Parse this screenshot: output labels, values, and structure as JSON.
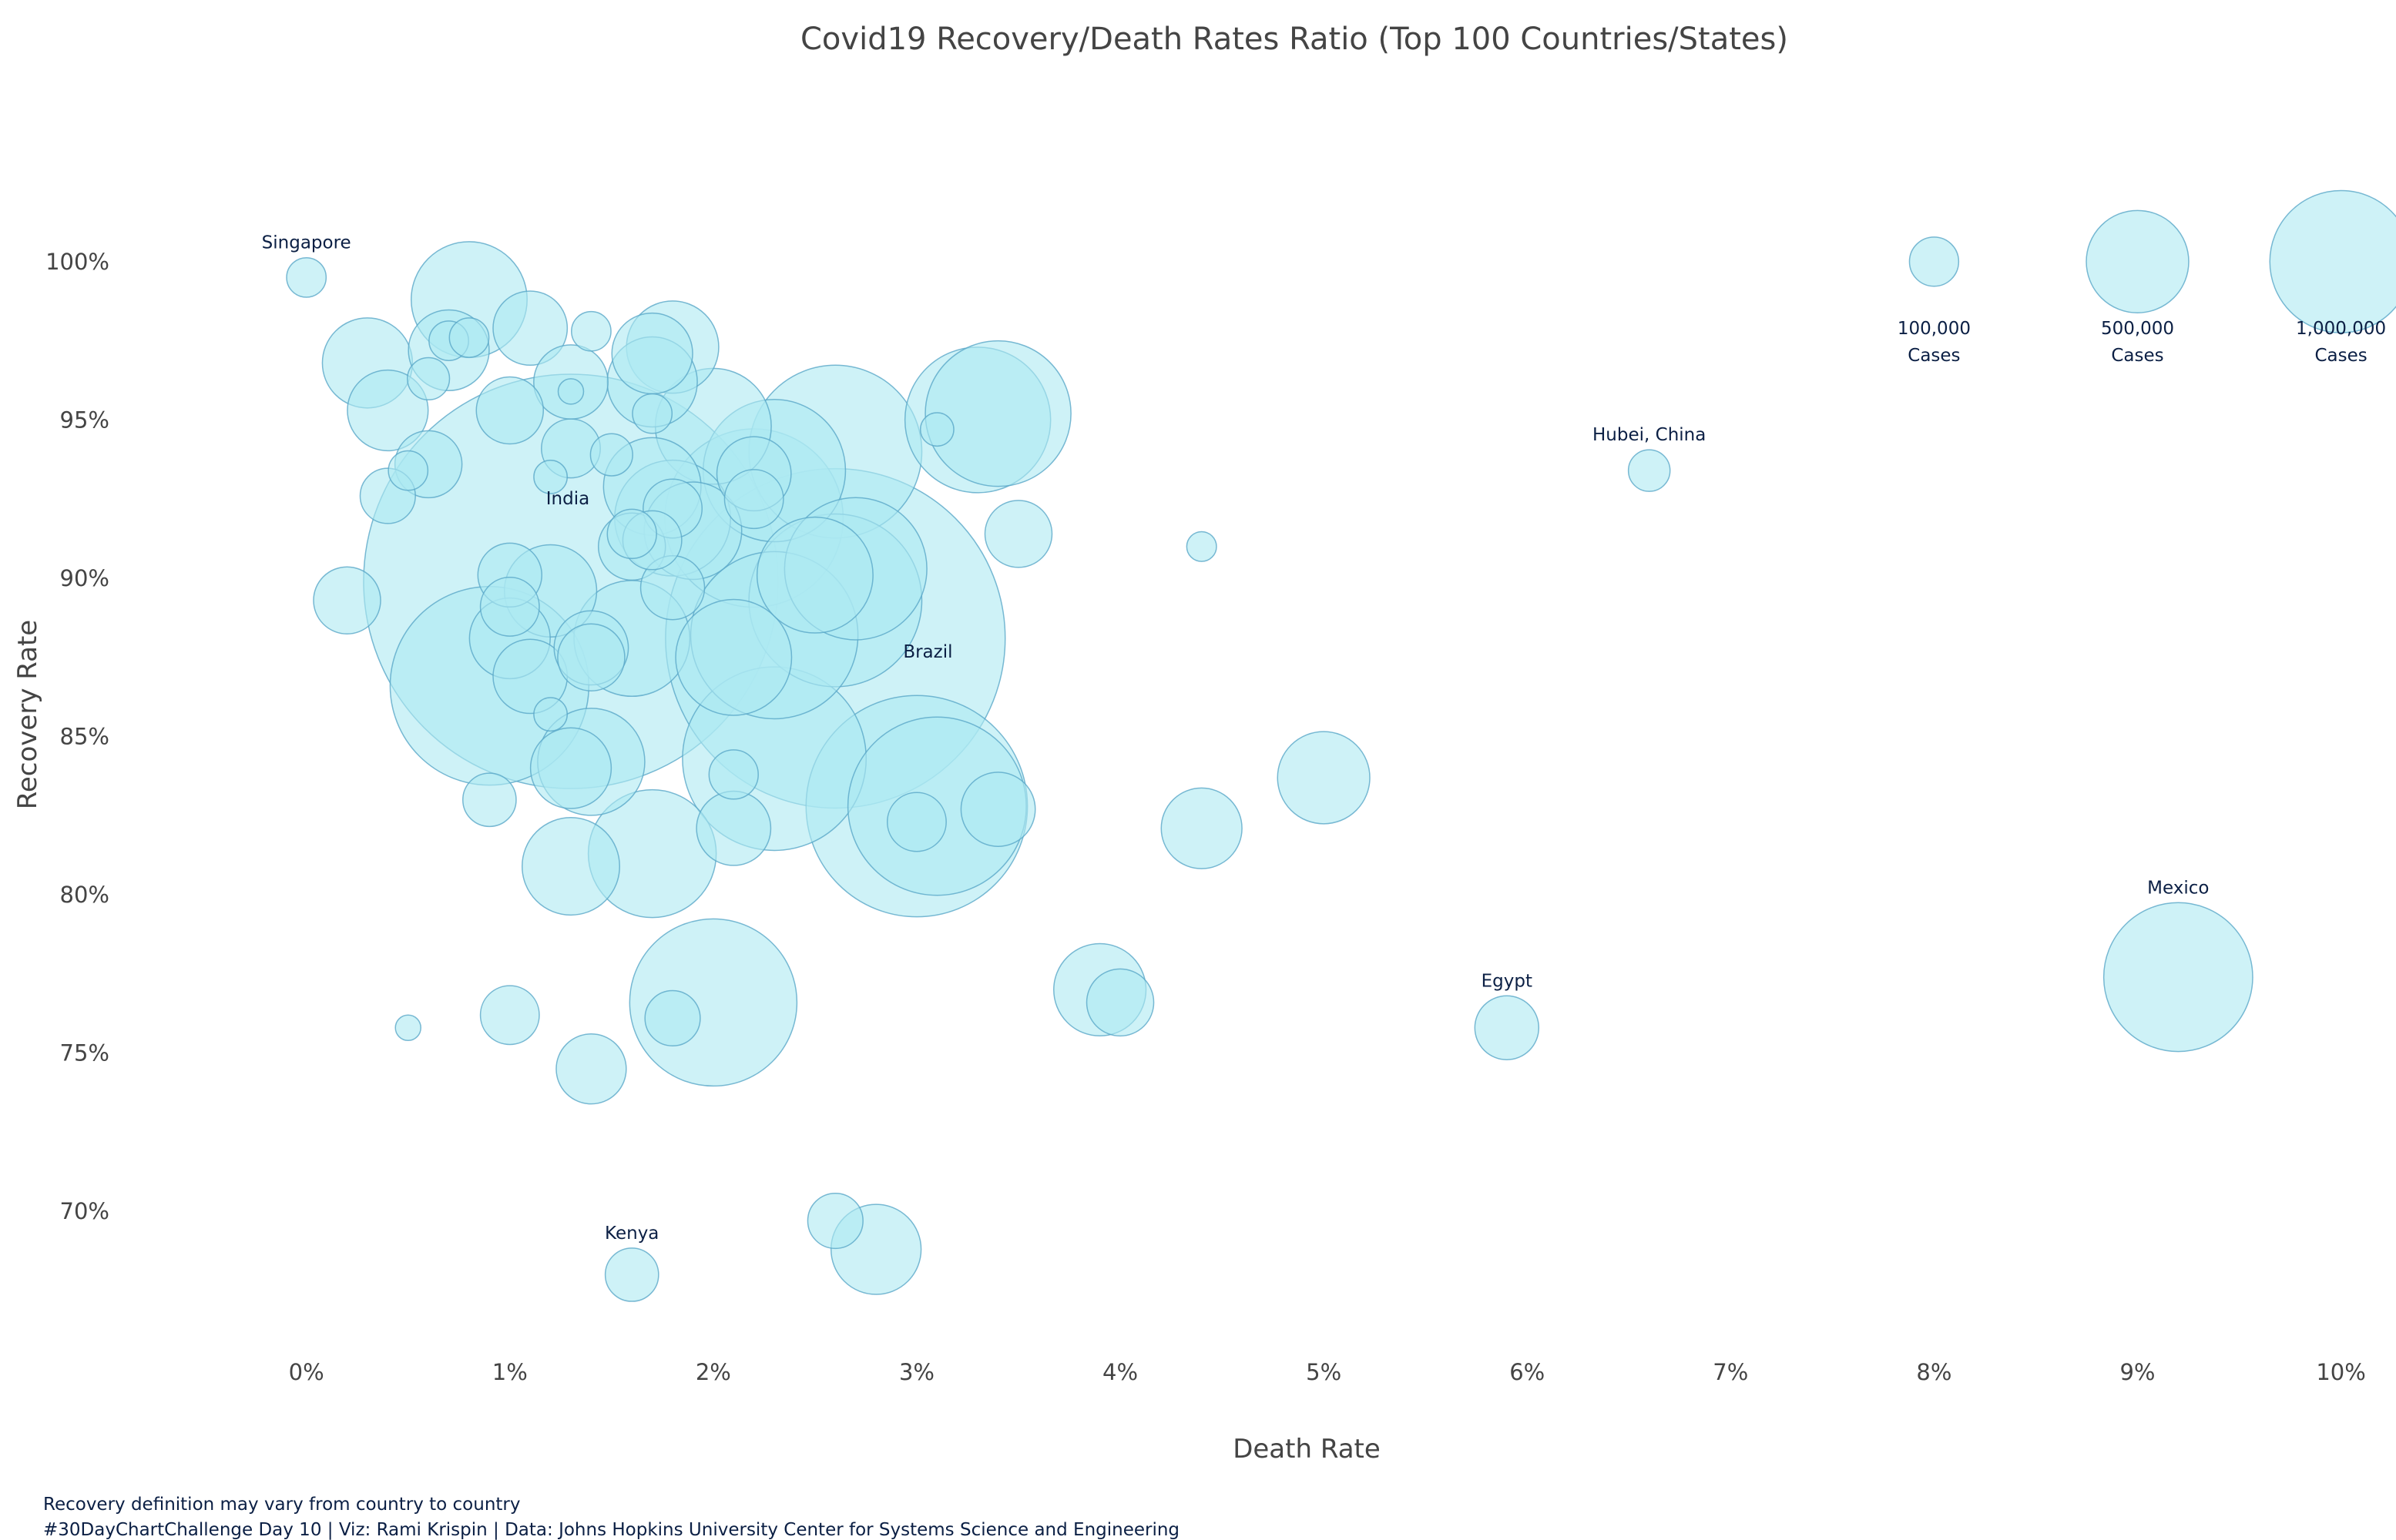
{
  "chart_data": {
    "type": "scatter",
    "title": "Covid19 Recovery/Death Rates Ratio (Top 100 Countries/States)",
    "xlabel": "Death Rate",
    "ylabel": "Recovery Rate",
    "xlim": [
      -0.9,
      10.1
    ],
    "ylim": [
      65.7,
      103.4
    ],
    "x_ticks": [
      0,
      1,
      2,
      3,
      4,
      5,
      6,
      7,
      8,
      9,
      10
    ],
    "x_tick_labels": [
      "0%",
      "1%",
      "2%",
      "3%",
      "4%",
      "5%",
      "6%",
      "7%",
      "8%",
      "9%",
      "10%"
    ],
    "y_ticks": [
      70,
      75,
      80,
      85,
      90,
      95,
      100
    ],
    "y_tick_labels": [
      "70%",
      "75%",
      "80%",
      "85%",
      "90%",
      "95%",
      "100%"
    ],
    "bubble_color": "#aee9f2",
    "bubble_border_color": "#5aa8c8",
    "points": [
      {
        "x": 0.0,
        "y": 99.5,
        "cases": 60000,
        "label": "Singapore"
      },
      {
        "x": 6.6,
        "y": 93.4,
        "cases": 68000,
        "label": "Hubei, China"
      },
      {
        "x": 1.3,
        "y": 89.9,
        "cases": 9000000,
        "label": "India"
      },
      {
        "x": 2.6,
        "y": 88.1,
        "cases": 6000000,
        "label": "Brazil"
      },
      {
        "x": 1.6,
        "y": 68.0,
        "cases": 120000,
        "label": "Kenya"
      },
      {
        "x": 5.9,
        "y": 75.8,
        "cases": 180000,
        "label": "Egypt"
      },
      {
        "x": 9.2,
        "y": 77.4,
        "cases": 1100000,
        "label": "Mexico"
      },
      {
        "x": 0.8,
        "y": 98.8,
        "cases": 650000
      },
      {
        "x": 0.3,
        "y": 96.8,
        "cases": 380000
      },
      {
        "x": 0.7,
        "y": 97.2,
        "cases": 300000
      },
      {
        "x": 0.7,
        "y": 97.5,
        "cases": 60000
      },
      {
        "x": 0.8,
        "y": 97.6,
        "cases": 60000
      },
      {
        "x": 0.6,
        "y": 96.3,
        "cases": 70000
      },
      {
        "x": 0.4,
        "y": 95.3,
        "cases": 300000
      },
      {
        "x": 1.1,
        "y": 97.9,
        "cases": 250000
      },
      {
        "x": 1.4,
        "y": 97.8,
        "cases": 60000
      },
      {
        "x": 1.0,
        "y": 95.3,
        "cases": 200000
      },
      {
        "x": 1.3,
        "y": 96.2,
        "cases": 250000
      },
      {
        "x": 1.3,
        "y": 95.9,
        "cases": 20000
      },
      {
        "x": 1.7,
        "y": 97.1,
        "cases": 300000
      },
      {
        "x": 1.8,
        "y": 97.3,
        "cases": 400000
      },
      {
        "x": 1.7,
        "y": 96.2,
        "cases": 380000
      },
      {
        "x": 1.7,
        "y": 95.2,
        "cases": 60000
      },
      {
        "x": 2.0,
        "y": 94.8,
        "cases": 650000
      },
      {
        "x": 0.6,
        "y": 93.6,
        "cases": 200000
      },
      {
        "x": 0.5,
        "y": 93.4,
        "cases": 60000
      },
      {
        "x": 0.4,
        "y": 92.6,
        "cases": 130000
      },
      {
        "x": 1.3,
        "y": 94.1,
        "cases": 150000
      },
      {
        "x": 1.5,
        "y": 93.9,
        "cases": 70000
      },
      {
        "x": 1.2,
        "y": 93.2,
        "cases": 40000
      },
      {
        "x": 1.7,
        "y": 92.9,
        "cases": 450000
      },
      {
        "x": 1.8,
        "y": 92.2,
        "cases": 150000
      },
      {
        "x": 1.8,
        "y": 91.9,
        "cases": 650000
      },
      {
        "x": 1.9,
        "y": 91.5,
        "cases": 450000
      },
      {
        "x": 2.2,
        "y": 91.9,
        "cases": 1600000
      },
      {
        "x": 2.3,
        "y": 93.4,
        "cases": 1000000
      },
      {
        "x": 2.2,
        "y": 93.3,
        "cases": 250000
      },
      {
        "x": 2.2,
        "y": 92.5,
        "cases": 150000
      },
      {
        "x": 2.6,
        "y": 94.0,
        "cases": 1500000
      },
      {
        "x": 3.1,
        "y": 94.7,
        "cases": 40000
      },
      {
        "x": 3.3,
        "y": 95.0,
        "cases": 1050000
      },
      {
        "x": 3.4,
        "y": 95.2,
        "cases": 1050000
      },
      {
        "x": 3.5,
        "y": 91.4,
        "cases": 200000
      },
      {
        "x": 4.4,
        "y": 91.0,
        "cases": 30000
      },
      {
        "x": 0.2,
        "y": 89.3,
        "cases": 200000
      },
      {
        "x": 1.0,
        "y": 90.1,
        "cases": 180000
      },
      {
        "x": 1.0,
        "y": 89.1,
        "cases": 150000
      },
      {
        "x": 1.2,
        "y": 89.6,
        "cases": 400000
      },
      {
        "x": 1.6,
        "y": 91.4,
        "cases": 100000
      },
      {
        "x": 1.6,
        "y": 91.0,
        "cases": 200000
      },
      {
        "x": 1.7,
        "y": 91.2,
        "cases": 150000
      },
      {
        "x": 1.8,
        "y": 89.7,
        "cases": 180000
      },
      {
        "x": 1.0,
        "y": 88.1,
        "cases": 300000
      },
      {
        "x": 0.9,
        "y": 86.6,
        "cases": 2000000
      },
      {
        "x": 1.1,
        "y": 86.9,
        "cases": 250000
      },
      {
        "x": 1.4,
        "y": 87.8,
        "cases": 250000
      },
      {
        "x": 1.4,
        "y": 87.5,
        "cases": 200000
      },
      {
        "x": 1.6,
        "y": 88.1,
        "cases": 650000
      },
      {
        "x": 2.1,
        "y": 87.5,
        "cases": 650000
      },
      {
        "x": 2.3,
        "y": 88.2,
        "cases": 1400000
      },
      {
        "x": 2.5,
        "y": 90.1,
        "cases": 650000
      },
      {
        "x": 2.6,
        "y": 89.3,
        "cases": 1500000
      },
      {
        "x": 2.7,
        "y": 90.3,
        "cases": 1000000
      },
      {
        "x": 1.2,
        "y": 85.7,
        "cases": 40000
      },
      {
        "x": 0.9,
        "y": 83.0,
        "cases": 120000
      },
      {
        "x": 1.3,
        "y": 84.0,
        "cases": 300000
      },
      {
        "x": 1.4,
        "y": 84.2,
        "cases": 550000
      },
      {
        "x": 2.1,
        "y": 83.8,
        "cases": 100000
      },
      {
        "x": 2.3,
        "y": 84.3,
        "cases": 1700000
      },
      {
        "x": 1.3,
        "y": 80.9,
        "cases": 450000
      },
      {
        "x": 1.7,
        "y": 81.3,
        "cases": 800000
      },
      {
        "x": 2.1,
        "y": 82.1,
        "cases": 250000
      },
      {
        "x": 3.0,
        "y": 82.8,
        "cases": 2500000
      },
      {
        "x": 3.1,
        "y": 82.8,
        "cases": 1600000
      },
      {
        "x": 3.0,
        "y": 82.3,
        "cases": 150000
      },
      {
        "x": 3.4,
        "y": 82.7,
        "cases": 250000
      },
      {
        "x": 4.4,
        "y": 82.1,
        "cases": 300000
      },
      {
        "x": 5.0,
        "y": 83.7,
        "cases": 400000
      },
      {
        "x": 0.5,
        "y": 75.8,
        "cases": 20000
      },
      {
        "x": 1.0,
        "y": 76.2,
        "cases": 150000
      },
      {
        "x": 1.8,
        "y": 76.1,
        "cases": 130000
      },
      {
        "x": 2.0,
        "y": 76.6,
        "cases": 1400000
      },
      {
        "x": 1.4,
        "y": 74.5,
        "cases": 220000
      },
      {
        "x": 3.9,
        "y": 77.0,
        "cases": 400000
      },
      {
        "x": 4.0,
        "y": 76.6,
        "cases": 200000
      },
      {
        "x": 2.6,
        "y": 69.7,
        "cases": 130000
      },
      {
        "x": 2.8,
        "y": 68.8,
        "cases": 380000
      }
    ],
    "size_legend": [
      {
        "x": 8,
        "y": 100,
        "cases": 100000,
        "label": "100,000",
        "sub": "Cases"
      },
      {
        "x": 9,
        "y": 100,
        "cases": 500000,
        "label": "500,000",
        "sub": "Cases"
      },
      {
        "x": 10,
        "y": 100,
        "cases": 1000000,
        "label": "1,000,000",
        "sub": "Cases"
      }
    ]
  },
  "footnotes": {
    "note": "Recovery definition may vary from country to country",
    "credits": "#30DayChartChallenge Day 10 | Viz: Rami Krispin | Data: Johns Hopkins University Center for Systems Science and Engineering"
  }
}
